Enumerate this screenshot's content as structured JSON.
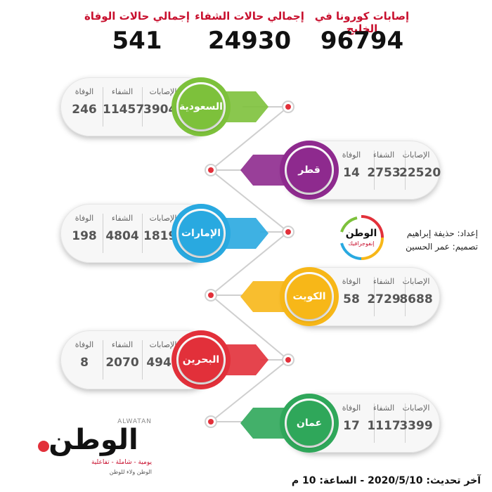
{
  "totals": [
    {
      "label": "إصابات كورونا في الخليج",
      "value": "96794"
    },
    {
      "label": "إجمالي حالات الشفاء",
      "value": "24930"
    },
    {
      "label": "إجمالي حالات الوفاة",
      "value": "541"
    }
  ],
  "stat_labels": {
    "cases": "الإصابات",
    "recovered": "الشفاء",
    "deaths": "الوفاة"
  },
  "countries": [
    {
      "name": "السعودية",
      "cases": "39048",
      "recovered": "11457",
      "deaths": "246",
      "color": "#7dc13b"
    },
    {
      "name": "قطر",
      "cases": "22520",
      "recovered": "2753",
      "deaths": "14",
      "color": "#8e2a8e"
    },
    {
      "name": "الإمارات",
      "cases": "18198",
      "recovered": "4804",
      "deaths": "198",
      "color": "#29a9e0"
    },
    {
      "name": "الكويت",
      "cases": "8688",
      "recovered": "2729",
      "deaths": "58",
      "color": "#f7b718"
    },
    {
      "name": "البحرين",
      "cases": "4941",
      "recovered": "2070",
      "deaths": "8",
      "color": "#e2303a"
    },
    {
      "name": "عمان",
      "cases": "3399",
      "recovered": "1117",
      "deaths": "17",
      "color": "#2fa75a"
    }
  ],
  "credits": {
    "prepared": "إعداد: حذيفة إبراهيم",
    "design": "تصميم: عمر الحسين"
  },
  "logo": {
    "brand": "الوطن",
    "latin": "ALWATAN",
    "tagline": "يومية - شاملة - تفاعلية",
    "slogan": "الوطن ولاء للوطن",
    "small_brand": "الوطن",
    "small_sub": "إنفوجرافيك"
  },
  "footer": {
    "update": "آخر تحديث: 2020/5/10 - الساعة: 10 م"
  }
}
